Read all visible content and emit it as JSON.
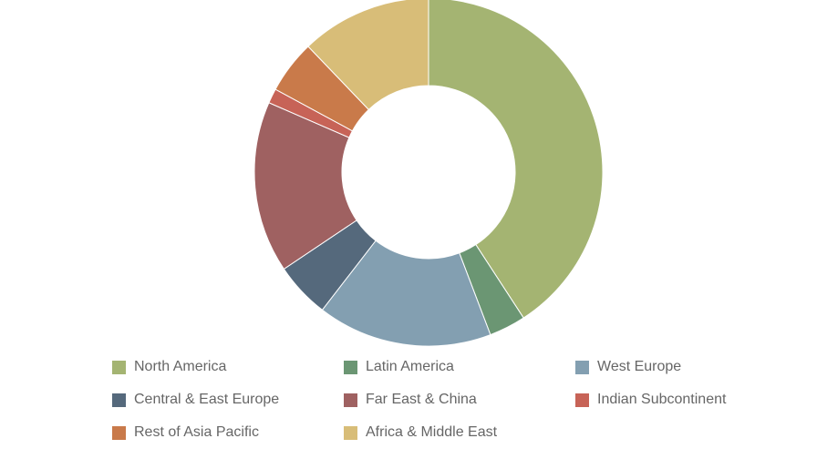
{
  "chart_data": {
    "type": "pie",
    "donut": true,
    "legend_position": "bottom",
    "series": [
      {
        "name": "North America",
        "value": 42.0,
        "color": "#a4b472"
      },
      {
        "name": "Latin America",
        "value": 3.5,
        "color": "#6b9673"
      },
      {
        "name": "West Europe",
        "value": 16.7,
        "color": "#839fb1"
      },
      {
        "name": "Central & East Europe",
        "value": 5.3,
        "color": "#55697c"
      },
      {
        "name": "Far East & China",
        "value": 16.4,
        "color": "#9f6161"
      },
      {
        "name": "Indian Subcontinent",
        "value": 1.4,
        "color": "#c76357"
      },
      {
        "name": "Rest of Asia Pacific",
        "value": 5.1,
        "color": "#c97a4a"
      },
      {
        "name": "Africa & Middle East",
        "value": 12.5,
        "color": "#d8bd78"
      }
    ]
  }
}
